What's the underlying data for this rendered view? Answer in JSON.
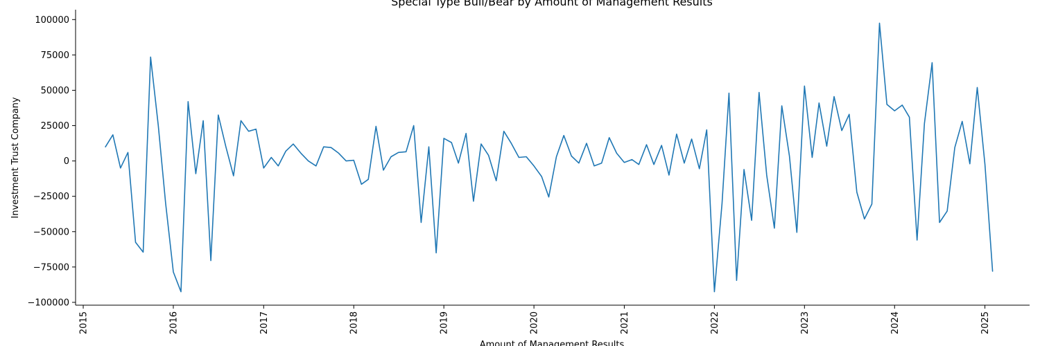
{
  "chart_data": {
    "type": "line",
    "title": "Special Type Bull/Bear by Amount of Management Results",
    "xlabel": "Amount of Management Results",
    "ylabel": "Investment Trust Company",
    "x_ticks": [
      "2015",
      "2016",
      "2017",
      "2018",
      "2019",
      "2020",
      "2021",
      "2022",
      "2023",
      "2024",
      "2025"
    ],
    "y_ticks": [
      "100000",
      "75000",
      "50000",
      "25000",
      "0",
      "−25000",
      "−50000",
      "−75000",
      "−100000"
    ],
    "xlim": [
      "2014-12-01",
      "2025-07-01"
    ],
    "ylim": [
      -102000,
      107000
    ],
    "grid": false,
    "line_color": "#1f77b4",
    "series": [
      {
        "name": "",
        "x": [
          "2015-04",
          "2015-05",
          "2015-06",
          "2015-07",
          "2015-08",
          "2015-09",
          "2015-10",
          "2015-11",
          "2015-12",
          "2016-01",
          "2016-02",
          "2016-03",
          "2016-04",
          "2016-05",
          "2016-06",
          "2016-07",
          "2016-08",
          "2016-09",
          "2016-10",
          "2016-11",
          "2016-12",
          "2017-01",
          "2017-02",
          "2017-03",
          "2017-04",
          "2017-05",
          "2017-06",
          "2017-07",
          "2017-08",
          "2017-09",
          "2017-10",
          "2017-11",
          "2017-12",
          "2018-01",
          "2018-02",
          "2018-03",
          "2018-04",
          "2018-05",
          "2018-06",
          "2018-07",
          "2018-08",
          "2018-09",
          "2018-10",
          "2018-11",
          "2018-12",
          "2019-01",
          "2019-02",
          "2019-03",
          "2019-04",
          "2019-05",
          "2019-06",
          "2019-07",
          "2019-08",
          "2019-09",
          "2019-10",
          "2019-11",
          "2019-12",
          "2020-01",
          "2020-02",
          "2020-03",
          "2020-04",
          "2020-05",
          "2020-06",
          "2020-07",
          "2020-08",
          "2020-09",
          "2020-10",
          "2020-11",
          "2020-12",
          "2021-01",
          "2021-02",
          "2021-03",
          "2021-04",
          "2021-05",
          "2021-06",
          "2021-07",
          "2021-08",
          "2021-09",
          "2021-10",
          "2021-11",
          "2021-12",
          "2022-01",
          "2022-02",
          "2022-03",
          "2022-04",
          "2022-05",
          "2022-06",
          "2022-07",
          "2022-08",
          "2022-09",
          "2022-10",
          "2022-11",
          "2022-12",
          "2023-01",
          "2023-02",
          "2023-03",
          "2023-04",
          "2023-05",
          "2023-06",
          "2023-07",
          "2023-08",
          "2023-09",
          "2023-10",
          "2023-11",
          "2023-12",
          "2024-01",
          "2024-02",
          "2024-03",
          "2024-04",
          "2024-05",
          "2024-06",
          "2024-07",
          "2024-08",
          "2024-09",
          "2024-10",
          "2024-11",
          "2024-12",
          "2025-01",
          "2025-02"
        ],
        "values": [
          10000,
          18500,
          -5000,
          6000,
          -57500,
          -64500,
          73500,
          25000,
          -30000,
          -78500,
          -92500,
          42000,
          -9000,
          28500,
          -70500,
          32500,
          10000,
          -10500,
          28500,
          21000,
          22500,
          -5000,
          2500,
          -3500,
          7000,
          12000,
          5500,
          0,
          -3500,
          10000,
          9500,
          5500,
          0,
          500,
          -16500,
          -13000,
          24500,
          -6500,
          3000,
          6000,
          6500,
          25000,
          -43500,
          10000,
          -65000,
          16000,
          13000,
          -1500,
          19500,
          -28500,
          12000,
          4000,
          -14000,
          21000,
          12500,
          2500,
          3000,
          -3500,
          -11000,
          -25500,
          3000,
          18000,
          3500,
          -1500,
          12500,
          -3500,
          -1500,
          16500,
          5500,
          -1000,
          1000,
          -2500,
          11500,
          -2500,
          11000,
          -10000,
          19000,
          -1500,
          15500,
          -5500,
          22000,
          -92500,
          -30000,
          48000,
          -84500,
          -6000,
          -42000,
          48500,
          -10000,
          -47500,
          39000,
          3500,
          -50500,
          53000,
          2500,
          41000,
          10500,
          45500,
          21500,
          33000,
          -22000,
          -41000,
          -30500,
          97500,
          40000,
          35500,
          39500,
          31000,
          -56000,
          26500,
          69500,
          -43500,
          -35500,
          9500,
          28000,
          -2000,
          52000,
          -2500,
          -78000
        ]
      }
    ]
  }
}
